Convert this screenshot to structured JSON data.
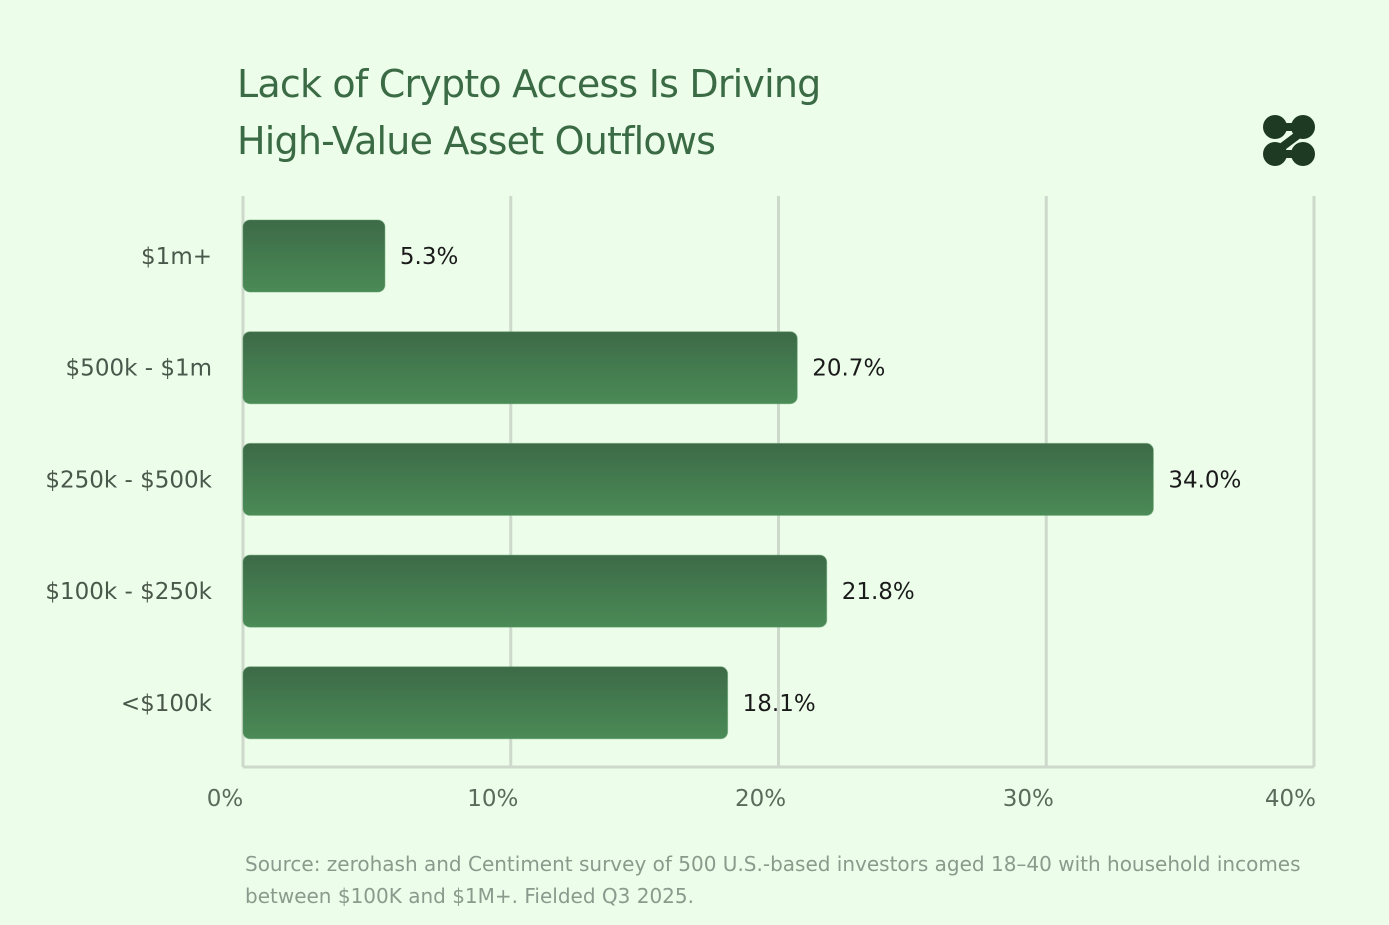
{
  "chart_data": {
    "type": "bar",
    "orientation": "horizontal",
    "title": "Lack of Crypto Access Is Driving High-Value Asset Outflows",
    "title_lines": [
      "Lack of Crypto Access Is Driving",
      "High-Value Asset Outflows"
    ],
    "categories": [
      "$1m+",
      "$500k - $1m",
      "$250k - $500k",
      "$100k - $250k",
      "<$100k"
    ],
    "values": [
      5.3,
      20.7,
      34.0,
      21.8,
      18.1
    ],
    "data_labels": [
      "5.3%",
      "20.7%",
      "34.0%",
      "21.8%",
      "18.1%"
    ],
    "xlim": [
      0,
      40
    ],
    "x_ticks": [
      0,
      10,
      20,
      30,
      40
    ],
    "x_tick_labels": [
      "0%",
      "10%",
      "20%",
      "30%",
      "40%"
    ],
    "xlabel": "",
    "ylabel": "",
    "grid": "vertical",
    "legend": "none",
    "source": "Source: zerohash and Centiment survey of 500 U.S.-based investors aged 18–40 with household incomes between $100K and $1M+. Fielded Q3 2025.",
    "colors": {
      "background": "#ecfdea",
      "bar_top": "#3d6a47",
      "bar_bottom": "#4a8b56",
      "grid": "#cdd9cb",
      "title": "#3a6b44",
      "logo": "#1e3a22"
    }
  },
  "logo": {
    "icon": "zerohash-logo-icon"
  }
}
